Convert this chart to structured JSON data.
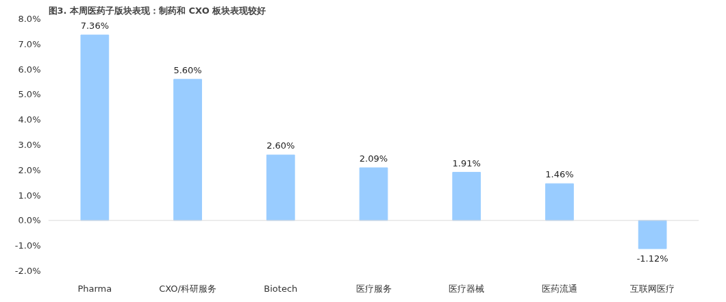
{
  "chart_data": {
    "type": "bar",
    "title": "图3. 本周医药子版块表现：制药和 CXO 板块表现较好",
    "categories": [
      "Pharma",
      "CXO/科研服务",
      "Biotech",
      "医疗服务",
      "医疗器械",
      "医药流通",
      "互联网医疗"
    ],
    "values": [
      7.36,
      5.6,
      2.6,
      2.09,
      1.91,
      1.46,
      -1.12
    ],
    "value_labels": [
      "7.36%",
      "5.60%",
      "2.60%",
      "2.09%",
      "1.91%",
      "1.46%",
      "-1.12%"
    ],
    "color": "#99ccff",
    "ylim": [
      -2,
      8
    ],
    "yticks": [
      {
        "value": -2,
        "label": "-2.0%"
      },
      {
        "value": -1,
        "label": "-1.0%"
      },
      {
        "value": 0,
        "label": "0.0%"
      },
      {
        "value": 1,
        "label": "1.0%"
      },
      {
        "value": 2,
        "label": "2.0%"
      },
      {
        "value": 3,
        "label": "3.0%"
      },
      {
        "value": 4,
        "label": "4.0%"
      },
      {
        "value": 5,
        "label": "5.0%"
      },
      {
        "value": 6,
        "label": "6.0%"
      },
      {
        "value": 7,
        "label": "7.0%"
      },
      {
        "value": 8,
        "label": "8.0%"
      }
    ],
    "ref_lines": [
      {
        "axis": "y",
        "value": 0,
        "color": "#d9d9d9"
      }
    ],
    "grid": false
  }
}
